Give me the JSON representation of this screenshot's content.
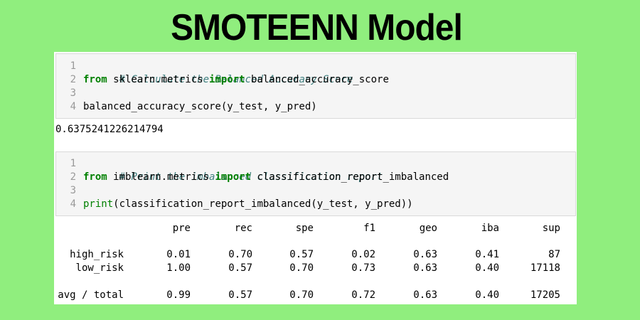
{
  "title": "SMOTEENN Model",
  "cell1": {
    "line_numbers": [
      "1",
      "2",
      "3",
      "4"
    ],
    "comment": "# Calculate the Balanced Accuracy Score",
    "kw_from": "from",
    "module": " sklearn.metrics ",
    "kw_import": "import",
    "import_name": " balanced_accuracy_score",
    "call": "balanced_accuracy_score(y_test, y_pred)",
    "output": "0.6375241226214794"
  },
  "cell2": {
    "line_numbers": [
      "1",
      "2",
      "3",
      "4"
    ],
    "comment": "# Print the imbalanced classification report",
    "kw_from": "from",
    "module": " imblearn.metrics ",
    "kw_import": "import",
    "import_name": " classification_report_imbalanced",
    "print_kw": "print",
    "call_rest": "(classification_report_imbalanced(y_test, y_pred))"
  },
  "report": {
    "headers": [
      "pre",
      "rec",
      "spe",
      "f1",
      "geo",
      "iba",
      "sup"
    ],
    "rows": [
      {
        "label": " high_risk",
        "values": [
          "0.01",
          "0.70",
          "0.57",
          "0.02",
          "0.63",
          "0.41",
          "87"
        ]
      },
      {
        "label": "  low_risk",
        "values": [
          "1.00",
          "0.57",
          "0.70",
          "0.73",
          "0.63",
          "0.40",
          "17118"
        ]
      },
      {
        "label": "avg / total",
        "values": [
          "0.99",
          "0.57",
          "0.70",
          "0.72",
          "0.63",
          "0.40",
          "17205"
        ]
      }
    ]
  }
}
